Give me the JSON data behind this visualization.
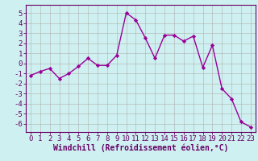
{
  "x": [
    0,
    1,
    2,
    3,
    4,
    5,
    6,
    7,
    8,
    9,
    10,
    11,
    12,
    13,
    14,
    15,
    16,
    17,
    18,
    19,
    20,
    21,
    22,
    23
  ],
  "y": [
    -1.2,
    -0.8,
    -0.5,
    -1.5,
    -1.0,
    -0.3,
    0.5,
    -0.2,
    -0.2,
    0.8,
    5.0,
    4.3,
    2.5,
    0.5,
    2.8,
    2.8,
    2.2,
    2.7,
    -0.4,
    1.8,
    -2.5,
    -3.5,
    -5.8,
    -6.3
  ],
  "line_color": "#990099",
  "marker": "D",
  "marker_size": 2.2,
  "bg_color": "#cff0f0",
  "grid_color": "#b0b0b0",
  "xlabel": "Windchill (Refroidissement éolien,°C)",
  "ylim": [
    -6.8,
    5.8
  ],
  "xlim": [
    -0.5,
    23.5
  ],
  "yticks": [
    -6,
    -5,
    -4,
    -3,
    -2,
    -1,
    0,
    1,
    2,
    3,
    4,
    5
  ],
  "xticks": [
    0,
    1,
    2,
    3,
    4,
    5,
    6,
    7,
    8,
    9,
    10,
    11,
    12,
    13,
    14,
    15,
    16,
    17,
    18,
    19,
    20,
    21,
    22,
    23
  ],
  "axis_color": "#660066",
  "tick_color": "#660066",
  "label_color": "#660066",
  "xlabel_fontsize": 7.0,
  "tick_fontsize": 6.5,
  "line_width": 1.0
}
